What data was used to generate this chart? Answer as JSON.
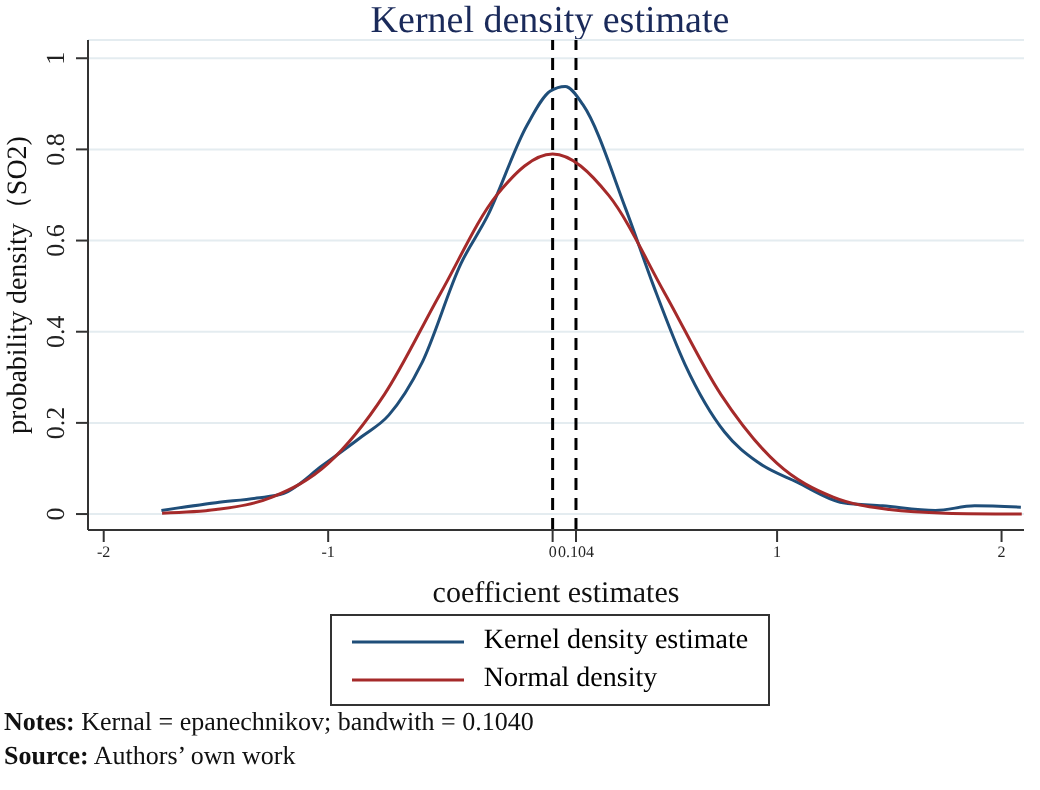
{
  "chart_data": {
    "type": "line",
    "title": "Kernel density estimate",
    "xlabel": "coefficient estimates",
    "ylabel": "probability density（SO2)",
    "annotations": [
      "Notes: Kernal = epanechnikov; bandwith = 0.1040",
      "Source: Authors’ own work"
    ],
    "series": [
      {
        "name": "Kernel density estimate",
        "color": "#1f4e79",
        "x": [
          -1.743,
          -1.5,
          -1.318,
          -1.2,
          -1.024,
          -0.85,
          -0.73,
          -0.584,
          -0.408,
          -0.29,
          -0.114,
          -0.01,
          0.056,
          0.135,
          0.326,
          0.45,
          0.59,
          0.766,
          0.913,
          1.089,
          1.294,
          1.47,
          1.705,
          1.88,
          2.086
        ],
        "values": [
          0.008,
          0.025,
          0.035,
          0.045,
          0.107,
          0.17,
          0.217,
          0.33,
          0.55,
          0.654,
          0.853,
          0.928,
          0.938,
          0.898,
          0.669,
          0.5,
          0.328,
          0.18,
          0.114,
          0.07,
          0.025,
          0.018,
          0.008,
          0.018,
          0.015
        ]
      },
      {
        "name": "Normal density",
        "color": "#a52a2a",
        "x": [
          -1.74,
          -1.5,
          -1.25,
          -1.0,
          -0.75,
          -0.5,
          -0.25,
          0,
          0.25,
          0.5,
          0.75,
          1.0,
          1.25,
          1.5,
          1.75,
          2.09
        ],
        "values": [
          0.002,
          0.01,
          0.037,
          0.111,
          0.262,
          0.484,
          0.699,
          0.79,
          0.699,
          0.484,
          0.262,
          0.111,
          0.037,
          0.01,
          0.002,
          0
        ]
      }
    ],
    "xlim": [
      -2.07,
      2.1
    ],
    "xticks": [
      -2,
      -1,
      0,
      0.104,
      1,
      2
    ],
    "ylim": [
      -0.035,
      1.04
    ],
    "yticks": [
      0,
      0.2,
      0.4,
      0.6,
      0.8,
      1
    ],
    "ref_lines": [
      {
        "axis": "x",
        "value": 0,
        "color": "#000000",
        "line_style": "dashed"
      },
      {
        "axis": "x",
        "value": 0.104,
        "color": "#000000",
        "line_style": "dashed"
      }
    ],
    "grid": "y",
    "legend": "bottom",
    "marker": "none",
    "line_style": "solid"
  }
}
